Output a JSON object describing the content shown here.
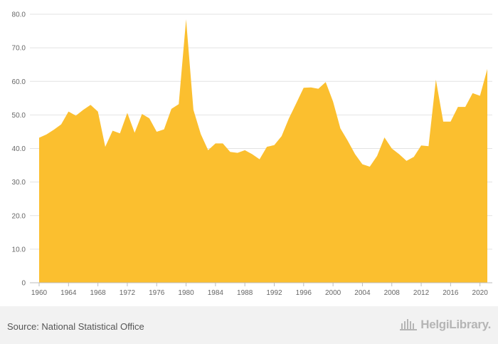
{
  "chart_data": {
    "type": "area",
    "color": "#fbbf2f",
    "ylim": [
      0,
      80
    ],
    "xlim": [
      1960,
      2021
    ],
    "yticks": [
      {
        "value": 0,
        "label": "0"
      },
      {
        "value": 10,
        "label": "10.0"
      },
      {
        "value": 20,
        "label": "20.0"
      },
      {
        "value": 30,
        "label": "30.0"
      },
      {
        "value": 40,
        "label": "40.0"
      },
      {
        "value": 50,
        "label": "50.0"
      },
      {
        "value": 60,
        "label": "60.0"
      },
      {
        "value": 70,
        "label": "70.0"
      },
      {
        "value": 80,
        "label": "80.0"
      }
    ],
    "xticks": [
      1960,
      1964,
      1968,
      1972,
      1976,
      1980,
      1984,
      1988,
      1992,
      1996,
      2000,
      2004,
      2008,
      2012,
      2016,
      2020
    ],
    "x": [
      1960,
      1961,
      1962,
      1963,
      1964,
      1965,
      1966,
      1967,
      1968,
      1969,
      1970,
      1971,
      1972,
      1973,
      1974,
      1975,
      1976,
      1977,
      1978,
      1979,
      1980,
      1981,
      1982,
      1983,
      1984,
      1985,
      1986,
      1987,
      1988,
      1989,
      1990,
      1991,
      1992,
      1993,
      1994,
      1995,
      1996,
      1997,
      1998,
      1999,
      2000,
      2001,
      2002,
      2003,
      2004,
      2005,
      2006,
      2007,
      2008,
      2009,
      2010,
      2011,
      2012,
      2013,
      2014,
      2015,
      2016,
      2017,
      2018,
      2019,
      2020,
      2021
    ],
    "values": [
      43.2,
      44.2,
      45.6,
      47.2,
      51.0,
      49.8,
      51.5,
      53.0,
      51.0,
      40.5,
      45.3,
      44.5,
      50.6,
      44.7,
      50.3,
      49.0,
      45.0,
      45.7,
      51.8,
      53.2,
      78.5,
      51.5,
      44.3,
      39.5,
      41.5,
      41.5,
      39.0,
      38.7,
      39.5,
      38.3,
      36.8,
      40.5,
      41.0,
      43.7,
      49.0,
      53.5,
      58.1,
      58.2,
      57.8,
      59.8,
      54.0,
      46.0,
      42.3,
      38.3,
      35.3,
      34.6,
      37.8,
      43.3,
      40.0,
      38.3,
      36.3,
      37.5,
      40.9,
      40.7,
      60.5,
      48.0,
      48.0,
      52.4,
      52.4,
      56.5,
      55.7,
      63.7
    ]
  },
  "footer": {
    "source": "Source: National Statistical Office",
    "logo_text": "HelgiLibrary."
  }
}
